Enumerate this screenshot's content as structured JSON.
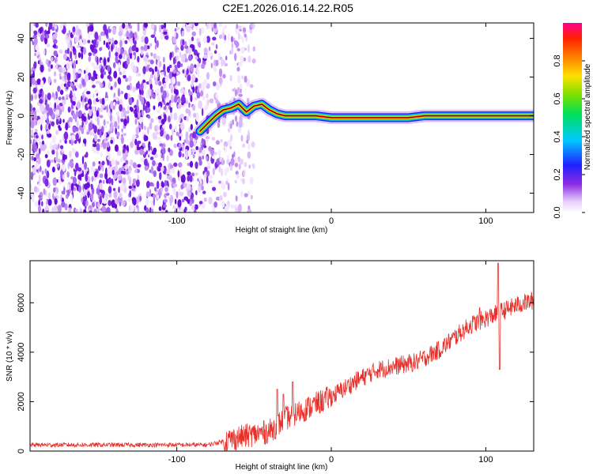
{
  "title": "C2E1.2026.016.14.22.R05",
  "colors": {
    "trace": "#e8302a",
    "axis": "#000000"
  },
  "chart_data": [
    {
      "type": "heatmap",
      "name": "spectrogram",
      "xlabel": "Height of straight line (km)",
      "ylabel": "Frequency (Hz)",
      "xlim": [
        -195,
        131
      ],
      "ylim": [
        -50,
        48
      ],
      "xticks": [
        {
          "v": -100,
          "label": "-100"
        },
        {
          "v": 0,
          "label": "0"
        },
        {
          "v": 100,
          "label": "100"
        }
      ],
      "yticks": [
        {
          "v": 40,
          "label": "40"
        },
        {
          "v": 20,
          "label": "20"
        },
        {
          "v": 0,
          "label": "0"
        },
        {
          "v": -20,
          "label": "-20"
        },
        {
          "v": -40,
          "label": "-40"
        }
      ],
      "noise_region_x": [
        -195,
        -50
      ],
      "carrier_track": [
        {
          "x": -85,
          "f": -8
        },
        {
          "x": -80,
          "f": -4
        },
        {
          "x": -75,
          "f": 0
        },
        {
          "x": -70,
          "f": 3
        },
        {
          "x": -65,
          "f": 4
        },
        {
          "x": -60,
          "f": 6
        },
        {
          "x": -55,
          "f": 2
        },
        {
          "x": -50,
          "f": 5
        },
        {
          "x": -45,
          "f": 6
        },
        {
          "x": -40,
          "f": 3
        },
        {
          "x": -35,
          "f": 1
        },
        {
          "x": -30,
          "f": 0
        },
        {
          "x": -20,
          "f": 0
        },
        {
          "x": -10,
          "f": 0
        },
        {
          "x": 0,
          "f": -1
        },
        {
          "x": 20,
          "f": -1
        },
        {
          "x": 50,
          "f": -1
        },
        {
          "x": 60,
          "f": 0
        },
        {
          "x": 100,
          "f": 0
        },
        {
          "x": 131,
          "f": 0
        }
      ],
      "colorbar": {
        "label": "Normalized spectral amplitude",
        "range": [
          0,
          1
        ],
        "ticks": [
          {
            "v": 0.0,
            "label": "0.0"
          },
          {
            "v": 0.2,
            "label": "0.2"
          },
          {
            "v": 0.4,
            "label": "0.4"
          },
          {
            "v": 0.6,
            "label": "0.6"
          },
          {
            "v": 0.8,
            "label": "0.8"
          }
        ]
      }
    },
    {
      "type": "line",
      "name": "snr",
      "xlabel": "Height of straight line (km)",
      "ylabel": "SNR (10 * v/v)",
      "xlim": [
        -195,
        131
      ],
      "ylim": [
        0,
        7700
      ],
      "xticks": [
        {
          "v": -100,
          "label": "-100"
        },
        {
          "v": 0,
          "label": "0"
        },
        {
          "v": 100,
          "label": "100"
        }
      ],
      "yticks": [
        {
          "v": 0,
          "label": "0"
        },
        {
          "v": 2000,
          "label": "2000"
        },
        {
          "v": 4000,
          "label": "4000"
        },
        {
          "v": 6000,
          "label": "6000"
        }
      ],
      "trend": [
        {
          "x": -195,
          "y": 250
        },
        {
          "x": -80,
          "y": 250
        },
        {
          "x": -60,
          "y": 550
        },
        {
          "x": -40,
          "y": 800
        },
        {
          "x": -30,
          "y": 1300
        },
        {
          "x": -10,
          "y": 1900
        },
        {
          "x": 0,
          "y": 2200
        },
        {
          "x": 15,
          "y": 2800
        },
        {
          "x": 30,
          "y": 3300
        },
        {
          "x": 55,
          "y": 3600
        },
        {
          "x": 70,
          "y": 4100
        },
        {
          "x": 90,
          "y": 5100
        },
        {
          "x": 105,
          "y": 5500
        },
        {
          "x": 120,
          "y": 5900
        },
        {
          "x": 131,
          "y": 6100
        }
      ],
      "spikes": [
        {
          "x": -35,
          "y": 2500
        },
        {
          "x": -31,
          "y": 2300
        },
        {
          "x": -25,
          "y": 2800
        },
        {
          "x": 96,
          "y": 5800
        },
        {
          "x": 108,
          "y": 7600
        },
        {
          "x": 109,
          "y": 3300
        }
      ]
    }
  ]
}
